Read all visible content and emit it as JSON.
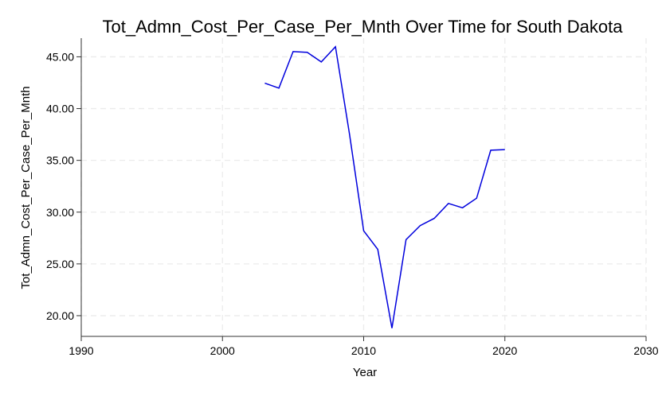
{
  "chart_data": {
    "type": "line",
    "title": "Tot_Admn_Cost_Per_Case_Per_Mnth Over Time for South Dakota",
    "xlabel": "Year",
    "ylabel": "Tot_Admn_Cost_Per_Case_Per_Mnth",
    "xlim": [
      1990,
      2030
    ],
    "ylim": [
      18.0,
      46.8
    ],
    "x_ticks": [
      "1990",
      "2000",
      "2010",
      "2020",
      "2030"
    ],
    "y_ticks": [
      "20.00",
      "25.00",
      "30.00",
      "35.00",
      "40.00",
      "45.00"
    ],
    "grid": true,
    "series": [
      {
        "color": "#0000dd",
        "x": [
          2003,
          2004,
          2005,
          2006,
          2007,
          2008,
          2009,
          2010,
          2011,
          2012,
          2013,
          2014,
          2015,
          2016,
          2017,
          2018,
          2019,
          2020
        ],
        "y": [
          42.45,
          41.98,
          45.5,
          45.43,
          44.5,
          45.97,
          37.5,
          28.2,
          26.4,
          18.8,
          27.35,
          28.7,
          29.4,
          30.84,
          30.42,
          31.35,
          35.98,
          36.04
        ]
      }
    ]
  }
}
